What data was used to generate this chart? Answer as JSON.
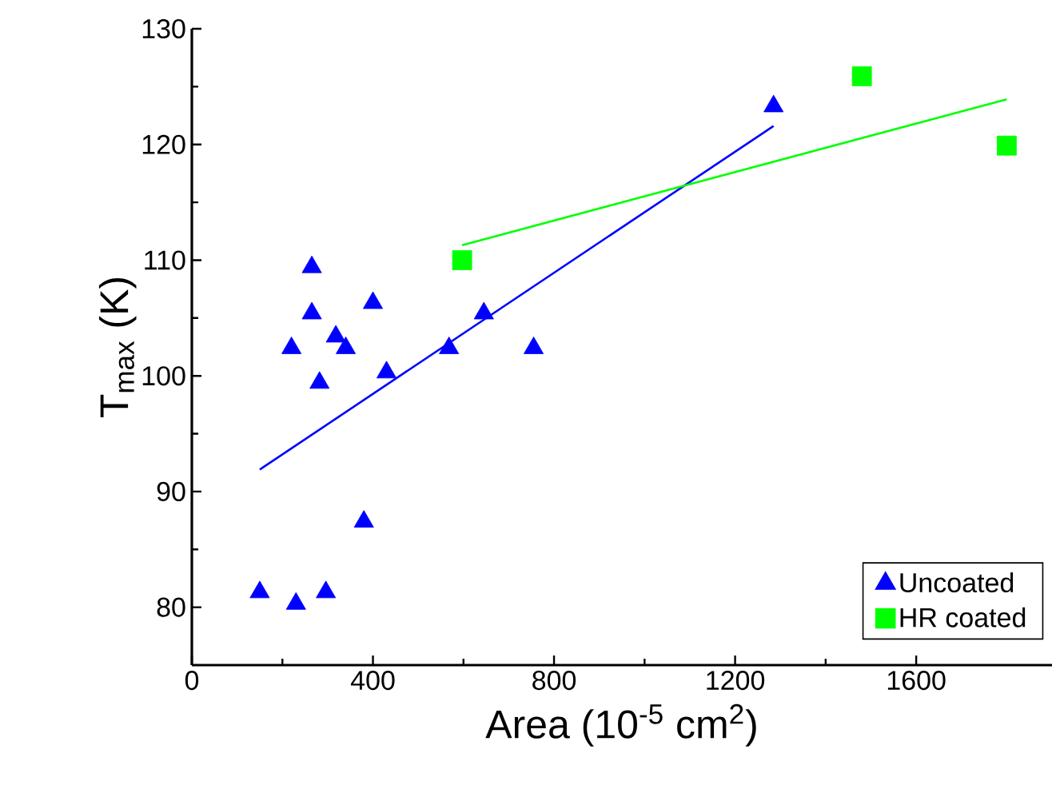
{
  "chart_data": {
    "type": "scatter",
    "xlabel": "Area (10$^{-5}$ cm$^{2}$)",
    "ylabel": "T$_{max}$ (K)",
    "xlim": [
      0,
      1900
    ],
    "ylim": [
      75,
      130
    ],
    "xticks": [
      0,
      400,
      800,
      1200,
      1600
    ],
    "yticks": [
      80,
      90,
      100,
      110,
      120,
      130
    ],
    "legend": "bottom right",
    "grid": false,
    "series": [
      {
        "name": "Uncoated",
        "color": "#0000ff",
        "marker": "triangle",
        "x": [
          265,
          265,
          400,
          318,
          220,
          340,
          282,
          430,
          568,
          645,
          755,
          380,
          150,
          230,
          296,
          1285
        ],
        "values": [
          109.4,
          105.4,
          106.3,
          103.4,
          102.4,
          102.4,
          99.4,
          100.3,
          102.4,
          105.4,
          102.4,
          87.4,
          81.3,
          80.3,
          81.3,
          123.3
        ]
      },
      {
        "name": "HR coated",
        "color": "#00ff00",
        "marker": "square",
        "x": [
          597,
          1480,
          1800
        ],
        "values": [
          110.0,
          125.9,
          119.9
        ]
      },
      {
        "type": "line",
        "color": "#0000ff",
        "marker": "none",
        "x": [
          150,
          1285
        ],
        "values": [
          91.9,
          121.6
        ]
      },
      {
        "type": "line",
        "color": "#00ff00",
        "marker": "none",
        "x": [
          597,
          1800
        ],
        "values": [
          111.3,
          123.9
        ]
      }
    ]
  }
}
